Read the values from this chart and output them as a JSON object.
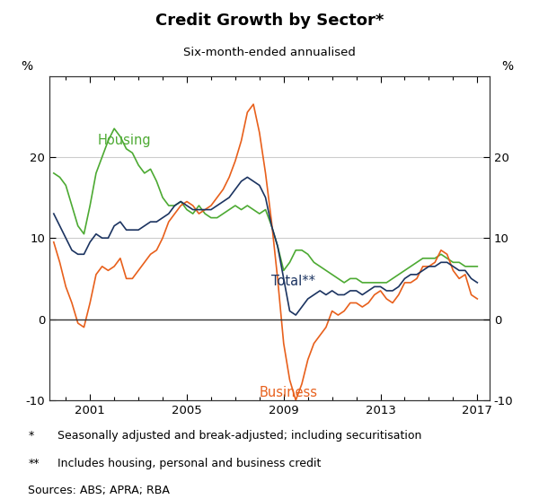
{
  "title": "Credit Growth by Sector*",
  "subtitle": "Six-month-ended annualised",
  "ylabel_left": "%",
  "ylabel_right": "%",
  "ylim": [
    -10,
    30
  ],
  "yticks": [
    -10,
    0,
    10,
    20
  ],
  "xlim": [
    1999.33,
    2017.5
  ],
  "xticks": [
    2001,
    2005,
    2009,
    2013,
    2017
  ],
  "xticklabels": [
    "2001",
    "2005",
    "2009",
    "2013",
    "2017"
  ],
  "footnote1_marker": "*",
  "footnote1_text": "Seasonally adjusted and break-adjusted; including securitisation",
  "footnote2_marker": "**",
  "footnote2_text": "Includes housing, personal and business credit",
  "footnote3": "Sources: ABS; APRA; RBA",
  "housing_label": "Housing",
  "business_label": "Business",
  "total_label": "Total**",
  "housing_color": "#4daa33",
  "business_color": "#e8601c",
  "total_color": "#1c3461",
  "grid_color": "#cccccc",
  "housing_data": [
    [
      1999.5,
      18.0
    ],
    [
      1999.75,
      17.5
    ],
    [
      2000.0,
      16.5
    ],
    [
      2000.25,
      14.0
    ],
    [
      2000.5,
      11.5
    ],
    [
      2000.75,
      10.5
    ],
    [
      2001.0,
      14.0
    ],
    [
      2001.25,
      18.0
    ],
    [
      2001.5,
      20.0
    ],
    [
      2001.75,
      22.0
    ],
    [
      2002.0,
      23.5
    ],
    [
      2002.25,
      22.5
    ],
    [
      2002.5,
      21.0
    ],
    [
      2002.75,
      20.5
    ],
    [
      2003.0,
      19.0
    ],
    [
      2003.25,
      18.0
    ],
    [
      2003.5,
      18.5
    ],
    [
      2003.75,
      17.0
    ],
    [
      2004.0,
      15.0
    ],
    [
      2004.25,
      14.0
    ],
    [
      2004.5,
      14.0
    ],
    [
      2004.75,
      14.5
    ],
    [
      2005.0,
      13.5
    ],
    [
      2005.25,
      13.0
    ],
    [
      2005.5,
      14.0
    ],
    [
      2005.75,
      13.0
    ],
    [
      2006.0,
      12.5
    ],
    [
      2006.25,
      12.5
    ],
    [
      2006.5,
      13.0
    ],
    [
      2006.75,
      13.5
    ],
    [
      2007.0,
      14.0
    ],
    [
      2007.25,
      13.5
    ],
    [
      2007.5,
      14.0
    ],
    [
      2007.75,
      13.5
    ],
    [
      2008.0,
      13.0
    ],
    [
      2008.25,
      13.5
    ],
    [
      2008.5,
      11.5
    ],
    [
      2008.75,
      9.0
    ],
    [
      2009.0,
      6.0
    ],
    [
      2009.25,
      7.0
    ],
    [
      2009.5,
      8.5
    ],
    [
      2009.75,
      8.5
    ],
    [
      2010.0,
      8.0
    ],
    [
      2010.25,
      7.0
    ],
    [
      2010.5,
      6.5
    ],
    [
      2010.75,
      6.0
    ],
    [
      2011.0,
      5.5
    ],
    [
      2011.25,
      5.0
    ],
    [
      2011.5,
      4.5
    ],
    [
      2011.75,
      5.0
    ],
    [
      2012.0,
      5.0
    ],
    [
      2012.25,
      4.5
    ],
    [
      2012.5,
      4.5
    ],
    [
      2012.75,
      4.5
    ],
    [
      2013.0,
      4.5
    ],
    [
      2013.25,
      4.5
    ],
    [
      2013.5,
      5.0
    ],
    [
      2013.75,
      5.5
    ],
    [
      2014.0,
      6.0
    ],
    [
      2014.25,
      6.5
    ],
    [
      2014.5,
      7.0
    ],
    [
      2014.75,
      7.5
    ],
    [
      2015.0,
      7.5
    ],
    [
      2015.25,
      7.5
    ],
    [
      2015.5,
      8.0
    ],
    [
      2015.75,
      7.5
    ],
    [
      2016.0,
      7.0
    ],
    [
      2016.25,
      7.0
    ],
    [
      2016.5,
      6.5
    ],
    [
      2016.75,
      6.5
    ],
    [
      2017.0,
      6.5
    ]
  ],
  "business_data": [
    [
      1999.5,
      9.5
    ],
    [
      1999.75,
      7.0
    ],
    [
      2000.0,
      4.0
    ],
    [
      2000.25,
      2.0
    ],
    [
      2000.5,
      -0.5
    ],
    [
      2000.75,
      -1.0
    ],
    [
      2001.0,
      2.0
    ],
    [
      2001.25,
      5.5
    ],
    [
      2001.5,
      6.5
    ],
    [
      2001.75,
      6.0
    ],
    [
      2002.0,
      6.5
    ],
    [
      2002.25,
      7.5
    ],
    [
      2002.5,
      5.0
    ],
    [
      2002.75,
      5.0
    ],
    [
      2003.0,
      6.0
    ],
    [
      2003.25,
      7.0
    ],
    [
      2003.5,
      8.0
    ],
    [
      2003.75,
      8.5
    ],
    [
      2004.0,
      10.0
    ],
    [
      2004.25,
      12.0
    ],
    [
      2004.5,
      13.0
    ],
    [
      2004.75,
      14.0
    ],
    [
      2005.0,
      14.5
    ],
    [
      2005.25,
      14.0
    ],
    [
      2005.5,
      13.0
    ],
    [
      2005.75,
      13.5
    ],
    [
      2006.0,
      14.0
    ],
    [
      2006.25,
      15.0
    ],
    [
      2006.5,
      16.0
    ],
    [
      2006.75,
      17.5
    ],
    [
      2007.0,
      19.5
    ],
    [
      2007.25,
      22.0
    ],
    [
      2007.5,
      25.5
    ],
    [
      2007.75,
      26.5
    ],
    [
      2008.0,
      23.0
    ],
    [
      2008.25,
      18.0
    ],
    [
      2008.5,
      12.0
    ],
    [
      2008.75,
      5.0
    ],
    [
      2009.0,
      -3.0
    ],
    [
      2009.25,
      -7.5
    ],
    [
      2009.5,
      -10.0
    ],
    [
      2009.75,
      -8.0
    ],
    [
      2010.0,
      -5.0
    ],
    [
      2010.25,
      -3.0
    ],
    [
      2010.5,
      -2.0
    ],
    [
      2010.75,
      -1.0
    ],
    [
      2011.0,
      1.0
    ],
    [
      2011.25,
      0.5
    ],
    [
      2011.5,
      1.0
    ],
    [
      2011.75,
      2.0
    ],
    [
      2012.0,
      2.0
    ],
    [
      2012.25,
      1.5
    ],
    [
      2012.5,
      2.0
    ],
    [
      2012.75,
      3.0
    ],
    [
      2013.0,
      3.5
    ],
    [
      2013.25,
      2.5
    ],
    [
      2013.5,
      2.0
    ],
    [
      2013.75,
      3.0
    ],
    [
      2014.0,
      4.5
    ],
    [
      2014.25,
      4.5
    ],
    [
      2014.5,
      5.0
    ],
    [
      2014.75,
      6.5
    ],
    [
      2015.0,
      6.5
    ],
    [
      2015.25,
      7.0
    ],
    [
      2015.5,
      8.5
    ],
    [
      2015.75,
      8.0
    ],
    [
      2016.0,
      6.0
    ],
    [
      2016.25,
      5.0
    ],
    [
      2016.5,
      5.5
    ],
    [
      2016.75,
      3.0
    ],
    [
      2017.0,
      2.5
    ]
  ],
  "total_data": [
    [
      1999.5,
      13.0
    ],
    [
      1999.75,
      11.5
    ],
    [
      2000.0,
      10.0
    ],
    [
      2000.25,
      8.5
    ],
    [
      2000.5,
      8.0
    ],
    [
      2000.75,
      8.0
    ],
    [
      2001.0,
      9.5
    ],
    [
      2001.25,
      10.5
    ],
    [
      2001.5,
      10.0
    ],
    [
      2001.75,
      10.0
    ],
    [
      2002.0,
      11.5
    ],
    [
      2002.25,
      12.0
    ],
    [
      2002.5,
      11.0
    ],
    [
      2002.75,
      11.0
    ],
    [
      2003.0,
      11.0
    ],
    [
      2003.25,
      11.5
    ],
    [
      2003.5,
      12.0
    ],
    [
      2003.75,
      12.0
    ],
    [
      2004.0,
      12.5
    ],
    [
      2004.25,
      13.0
    ],
    [
      2004.5,
      14.0
    ],
    [
      2004.75,
      14.5
    ],
    [
      2005.0,
      14.0
    ],
    [
      2005.25,
      13.5
    ],
    [
      2005.5,
      13.5
    ],
    [
      2005.75,
      13.5
    ],
    [
      2006.0,
      13.5
    ],
    [
      2006.25,
      14.0
    ],
    [
      2006.5,
      14.5
    ],
    [
      2006.75,
      15.0
    ],
    [
      2007.0,
      16.0
    ],
    [
      2007.25,
      17.0
    ],
    [
      2007.5,
      17.5
    ],
    [
      2007.75,
      17.0
    ],
    [
      2008.0,
      16.5
    ],
    [
      2008.25,
      15.0
    ],
    [
      2008.5,
      11.5
    ],
    [
      2008.75,
      9.0
    ],
    [
      2009.0,
      5.0
    ],
    [
      2009.25,
      1.0
    ],
    [
      2009.5,
      0.5
    ],
    [
      2009.75,
      1.5
    ],
    [
      2010.0,
      2.5
    ],
    [
      2010.25,
      3.0
    ],
    [
      2010.5,
      3.5
    ],
    [
      2010.75,
      3.0
    ],
    [
      2011.0,
      3.5
    ],
    [
      2011.25,
      3.0
    ],
    [
      2011.5,
      3.0
    ],
    [
      2011.75,
      3.5
    ],
    [
      2012.0,
      3.5
    ],
    [
      2012.25,
      3.0
    ],
    [
      2012.5,
      3.5
    ],
    [
      2012.75,
      4.0
    ],
    [
      2013.0,
      4.0
    ],
    [
      2013.25,
      3.5
    ],
    [
      2013.5,
      3.5
    ],
    [
      2013.75,
      4.0
    ],
    [
      2014.0,
      5.0
    ],
    [
      2014.25,
      5.5
    ],
    [
      2014.5,
      5.5
    ],
    [
      2014.75,
      6.0
    ],
    [
      2015.0,
      6.5
    ],
    [
      2015.25,
      6.5
    ],
    [
      2015.5,
      7.0
    ],
    [
      2015.75,
      7.0
    ],
    [
      2016.0,
      6.5
    ],
    [
      2016.25,
      6.0
    ],
    [
      2016.5,
      6.0
    ],
    [
      2016.75,
      5.0
    ],
    [
      2017.0,
      4.5
    ]
  ]
}
